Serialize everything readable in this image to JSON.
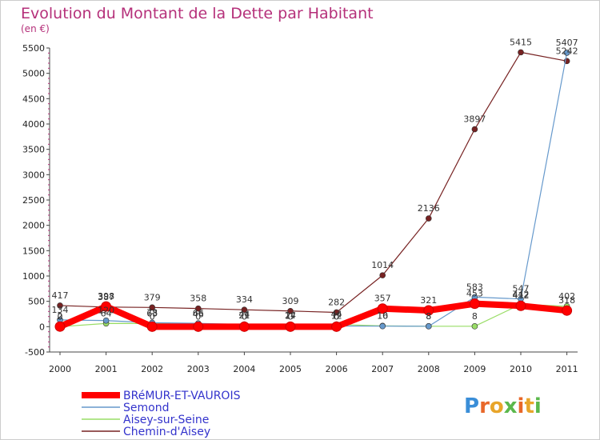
{
  "chart_data": {
    "type": "line",
    "title": "Evolution du Montant de la Dette par Habitant",
    "subtitle": "(en €)",
    "xlabel": "",
    "ylabel": "",
    "x": [
      "2000",
      "2001",
      "2002",
      "2003",
      "2004",
      "2005",
      "2006",
      "2007",
      "2008",
      "2009",
      "2010",
      "2011"
    ],
    "ylim": [
      -500,
      5500
    ],
    "yticks": [
      -500,
      0,
      500,
      1000,
      1500,
      2000,
      2500,
      3000,
      3500,
      4000,
      4500,
      5000,
      5500
    ],
    "grid": false,
    "legend_position": "bottom-left",
    "series": [
      {
        "name": "BRéMUR-ET-VAUROIS",
        "color": "#ff0000",
        "values": [
          2,
          398,
          0,
          0,
          0,
          0,
          0,
          357,
          321,
          453,
          412,
          318
        ],
        "labels": [
          "2",
          "398",
          "0",
          "0",
          "0",
          "0",
          "0",
          "357",
          "321",
          "453",
          "412",
          "318"
        ]
      },
      {
        "name": "Semond",
        "color": "#6699cc",
        "values": [
          134,
          120,
          78,
          66,
          44,
          24,
          12,
          10,
          8,
          583,
          547,
          5407
        ],
        "labels": [
          "134",
          "120",
          "78",
          "66",
          "44",
          "24",
          "12",
          "10",
          "8",
          "583",
          "547",
          "5407"
        ]
      },
      {
        "name": "Aisey-sur-Seine",
        "color": "#99dd66",
        "values": [
          0,
          64,
          63,
          46,
          21,
          17,
          44,
          16,
          8,
          8,
          442,
          402
        ],
        "labels": [
          "0",
          "64",
          "63",
          "46",
          "21",
          "17",
          "44",
          "16",
          "8",
          "8",
          "442",
          "402"
        ]
      },
      {
        "name": "Chemin-d'Aisey",
        "color": "#772222",
        "values": [
          417,
          387,
          379,
          358,
          334,
          309,
          282,
          1014,
          2136,
          3897,
          5415,
          5242
        ],
        "labels": [
          "417",
          "387",
          "379",
          "358",
          "334",
          "309",
          "282",
          "1014",
          "2136",
          "3897",
          "5415",
          "5242"
        ]
      }
    ]
  },
  "branding": {
    "logo_text": "Proxiti"
  }
}
